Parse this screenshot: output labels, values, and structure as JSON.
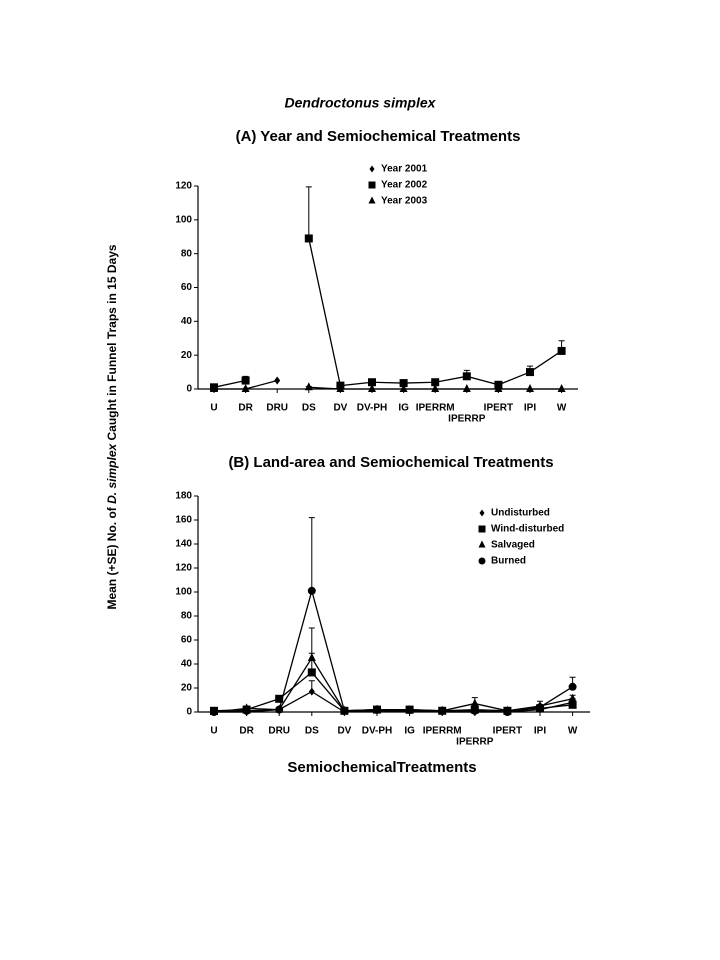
{
  "figure": {
    "title": "Dendroctonus simplex",
    "y_label": [
      "Mean (+SE) No. of ",
      "D. simplex",
      " Caught in Funnel Traps in 15 Days"
    ],
    "x_label": "SemiochemicalTreatments"
  },
  "chart_data": [
    {
      "type": "line",
      "title": "(A) Year and Semiochemical Treatments",
      "categories": [
        "U",
        "DR",
        "DRU",
        "DS",
        "DV",
        "DV-PH",
        "IG",
        "IPERRM",
        "IPERRP",
        "IPERT",
        "IPI",
        "W"
      ],
      "ylim": [
        0,
        120
      ],
      "yticks": [
        0,
        20,
        40,
        60,
        80,
        100,
        120
      ],
      "legend": "top",
      "series": [
        {
          "name": "Year 2001",
          "color": "#000000",
          "marker": "diamond",
          "values": [
            null,
            0,
            5,
            null,
            null,
            null,
            null,
            null,
            null,
            null,
            null,
            null
          ],
          "errors": [
            null,
            0,
            0,
            null,
            null,
            null,
            null,
            null,
            null,
            null,
            null,
            null
          ]
        },
        {
          "name": "Year 2002",
          "color": "#000000",
          "marker": "square",
          "values": [
            1,
            5,
            null,
            89,
            2,
            4,
            3.5,
            4,
            7.5,
            2.5,
            10,
            22.5
          ],
          "errors": [
            1,
            2.5,
            null,
            30.5,
            1,
            1,
            1,
            1.5,
            3.5,
            1,
            3.5,
            6
          ]
        },
        {
          "name": "Year 2003",
          "color": "#000000",
          "marker": "triangle",
          "values": [
            0,
            0,
            null,
            1,
            0,
            0,
            0,
            0,
            0,
            0,
            0,
            0
          ],
          "errors": [
            0,
            0,
            null,
            0.5,
            0,
            0,
            0,
            0,
            0,
            0,
            0,
            0
          ]
        }
      ]
    },
    {
      "type": "line",
      "title": "(B) Land-area and Semiochemical Treatments",
      "categories": [
        "U",
        "DR",
        "DRU",
        "DS",
        "DV",
        "DV-PH",
        "IG",
        "IPERRM",
        "IPERRP",
        "IPERT",
        "IPI",
        "W"
      ],
      "ylim": [
        0,
        180
      ],
      "yticks": [
        0,
        20,
        40,
        60,
        80,
        100,
        120,
        140,
        160,
        180
      ],
      "legend": "top-right",
      "series": [
        {
          "name": "Undisturbed",
          "color": "#000000",
          "marker": "diamond",
          "values": [
            0,
            0,
            2,
            17,
            0,
            1,
            1,
            0,
            0,
            0,
            2,
            8
          ],
          "errors": [
            0.5,
            0.5,
            1,
            9,
            0.5,
            0.5,
            0.5,
            0.5,
            0.5,
            0.5,
            1,
            3
          ]
        },
        {
          "name": "Wind-disturbed",
          "color": "#000000",
          "marker": "square",
          "values": [
            1,
            2,
            11,
            33,
            1,
            2,
            2,
            1,
            2,
            1,
            3,
            6
          ],
          "errors": [
            1,
            1,
            1.5,
            16,
            0.5,
            1,
            1,
            1,
            1,
            0.5,
            1.5,
            2
          ]
        },
        {
          "name": "Salvaged",
          "color": "#000000",
          "marker": "triangle",
          "values": [
            0,
            3,
            2,
            45,
            1,
            2,
            1,
            1,
            7,
            1,
            5,
            11
          ],
          "errors": [
            0.5,
            2,
            1,
            25,
            0.5,
            1,
            1,
            1,
            5,
            0.5,
            4,
            3
          ]
        },
        {
          "name": "Burned",
          "color": "#000000",
          "marker": "circle",
          "values": [
            0,
            1,
            2,
            101,
            1,
            2,
            2,
            1,
            1,
            0,
            4,
            21
          ],
          "errors": [
            0.5,
            1,
            1,
            61,
            0.5,
            1,
            1,
            0.5,
            1,
            0.5,
            2,
            8
          ]
        }
      ]
    }
  ]
}
